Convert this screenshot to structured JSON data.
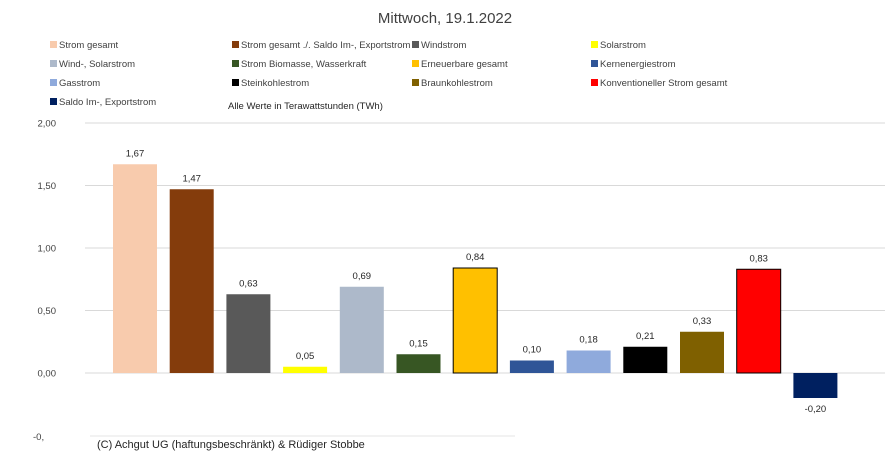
{
  "chart_data": {
    "type": "bar",
    "title": "Mittwoch,  19.1.2022",
    "note": "Alle Werte in Terawattstunden (TWh)",
    "copyright": "(C) Achgut UG (haftungsbeschränkt) & Rüdiger Stobbe",
    "ylim": [
      -0.5,
      2.0
    ],
    "ytick_values": [
      2.0,
      1.5,
      1.0,
      0.5,
      0.0
    ],
    "yticks": [
      "2,00",
      "1,50",
      "1,00",
      "0,50",
      "0,00"
    ],
    "ytick_cut": "-0,",
    "grid": true,
    "legend_position": "top",
    "series": [
      {
        "name": "Strom gesamt",
        "value": 1.67,
        "label": "1,67",
        "color": "#F8CBAD"
      },
      {
        "name": "Strom gesamt ./. Saldo Im-, Exportstrom",
        "value": 1.47,
        "label": "1,47",
        "color": "#843C0C"
      },
      {
        "name": "Windstrom",
        "value": 0.63,
        "label": "0,63",
        "color": "#595959"
      },
      {
        "name": "Solarstrom",
        "value": 0.05,
        "label": "0,05",
        "color": "#FFFF00"
      },
      {
        "name": "Wind-, Solarstrom",
        "value": 0.69,
        "label": "0,69",
        "color": "#ADB9CA"
      },
      {
        "name": "Strom Biomasse, Wasserkraft",
        "value": 0.15,
        "label": "0,15",
        "color": "#375623"
      },
      {
        "name": "Erneuerbare gesamt",
        "value": 0.84,
        "label": "0,84",
        "color": "#FFC000"
      },
      {
        "name": "Kernenergiestrom",
        "value": 0.1,
        "label": "0,10",
        "color": "#2F5597"
      },
      {
        "name": "Gasstrom",
        "value": 0.18,
        "label": "0,18",
        "color": "#8FAADC"
      },
      {
        "name": "Steinkohlestrom",
        "value": 0.21,
        "label": "0,21",
        "color": "#000000"
      },
      {
        "name": "Braunkohlestrom",
        "value": 0.33,
        "label": "0,33",
        "color": "#7F6000"
      },
      {
        "name": "Konventioneller Strom gesamt",
        "value": 0.83,
        "label": "0,83",
        "color": "#FF0000"
      },
      {
        "name": "Saldo Im-, Exportstrom",
        "value": -0.2,
        "label": "-0,20",
        "color": "#002060"
      }
    ]
  }
}
